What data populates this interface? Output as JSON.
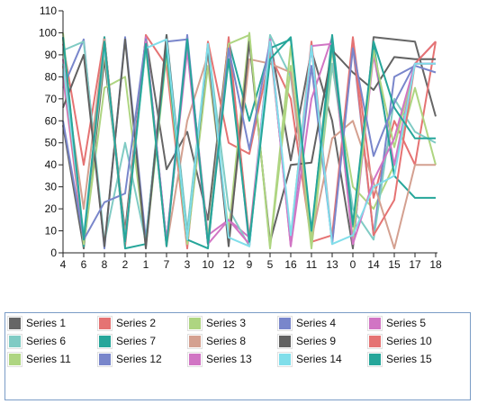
{
  "chart_data": {
    "type": "line",
    "categories": [
      "4",
      "6",
      "8",
      "2",
      "1",
      "7",
      "3",
      "10",
      "12",
      "9",
      "5",
      "16",
      "11",
      "13",
      "0",
      "14",
      "15",
      "17",
      "18"
    ],
    "ylim": [
      0,
      110
    ],
    "yticks": [
      "0",
      "10",
      "20",
      "30",
      "40",
      "50",
      "60",
      "70",
      "80",
      "90",
      "100",
      "110"
    ],
    "grid": false,
    "legend_position": "bottom",
    "series": [
      {
        "name": "Series 1",
        "color": "#666666",
        "values": [
          58,
          2,
          88,
          10,
          98,
          38,
          55,
          15,
          97,
          5,
          97,
          42,
          92,
          60,
          2,
          98,
          97,
          96,
          62
        ]
      },
      {
        "name": "Series 2",
        "color": "#e57373",
        "values": [
          95,
          40,
          98,
          3,
          99,
          85,
          2,
          96,
          50,
          45,
          90,
          70,
          5,
          8,
          98,
          25,
          60,
          40,
          96
        ]
      },
      {
        "name": "Series 3",
        "color": "#aed581",
        "values": [
          100,
          3,
          75,
          80,
          3,
          90,
          4,
          85,
          10,
          100,
          2,
          85,
          2,
          85,
          30,
          20,
          40,
          75,
          40
        ]
      },
      {
        "name": "Series 4",
        "color": "#7986cb",
        "values": [
          75,
          97,
          2,
          98,
          6,
          96,
          97,
          5,
          94,
          3,
          98,
          5,
          85,
          5,
          94,
          8,
          80,
          85,
          82
        ]
      },
      {
        "name": "Series 5",
        "color": "#d175c4",
        "values": [
          80,
          5,
          97,
          6,
          98,
          3,
          96,
          8,
          15,
          7,
          97,
          3,
          70,
          98,
          4,
          90,
          40,
          86,
          96
        ]
      },
      {
        "name": "Series 6",
        "color": "#80cbc4",
        "values": [
          92,
          96,
          5,
          50,
          5,
          99,
          10,
          95,
          20,
          3,
          99,
          80,
          8,
          86,
          20,
          6,
          70,
          55,
          50
        ]
      },
      {
        "name": "Series 7",
        "color": "#26a69a",
        "values": [
          98,
          3,
          98,
          2,
          4,
          93,
          6,
          2,
          96,
          60,
          93,
          97,
          8,
          99,
          12,
          95,
          35,
          25,
          25
        ]
      },
      {
        "name": "Series 8",
        "color": "#d4a090",
        "values": [
          85,
          20,
          97,
          7,
          96,
          3,
          60,
          90,
          6,
          88,
          86,
          82,
          6,
          52,
          60,
          32,
          2,
          40,
          40
        ]
      },
      {
        "name": "Series 9",
        "color": "#616161",
        "values": [
          66,
          90,
          3,
          97,
          2,
          99,
          6,
          93,
          3,
          96,
          5,
          40,
          41,
          92,
          82,
          74,
          89,
          88,
          88
        ]
      },
      {
        "name": "Series 10",
        "color": "#e57373",
        "values": [
          85,
          4,
          96,
          7,
          95,
          5,
          96,
          4,
          98,
          6,
          94,
          7,
          96,
          5,
          96,
          8,
          24,
          86,
          96
        ]
      },
      {
        "name": "Series 11",
        "color": "#aed581",
        "values": [
          97,
          4,
          92,
          5,
          93,
          4,
          97,
          6,
          95,
          99,
          3,
          94,
          5,
          93,
          6,
          92,
          48,
          86,
          86
        ]
      },
      {
        "name": "Series 12",
        "color": "#7986cb",
        "values": [
          60,
          6,
          23,
          27,
          97,
          5,
          99,
          4,
          93,
          47,
          96,
          5,
          94,
          4,
          93,
          44,
          68,
          86,
          86
        ]
      },
      {
        "name": "Series 13",
        "color": "#d175c4",
        "values": [
          88,
          6,
          94,
          5,
          96,
          5,
          92,
          4,
          15,
          4,
          97,
          3,
          94,
          95,
          4,
          33,
          52,
          86,
          86
        ]
      },
      {
        "name": "Series 14",
        "color": "#80deea",
        "values": [
          86,
          8,
          94,
          6,
          93,
          97,
          6,
          95,
          7,
          3,
          96,
          8,
          94,
          4,
          8,
          30,
          35,
          86,
          86
        ]
      },
      {
        "name": "Series 15",
        "color": "#26a69a",
        "values": [
          98,
          6,
          96,
          5,
          95,
          3,
          97,
          4,
          88,
          5,
          88,
          98,
          10,
          95,
          13,
          96,
          66,
          52,
          52
        ]
      }
    ]
  }
}
